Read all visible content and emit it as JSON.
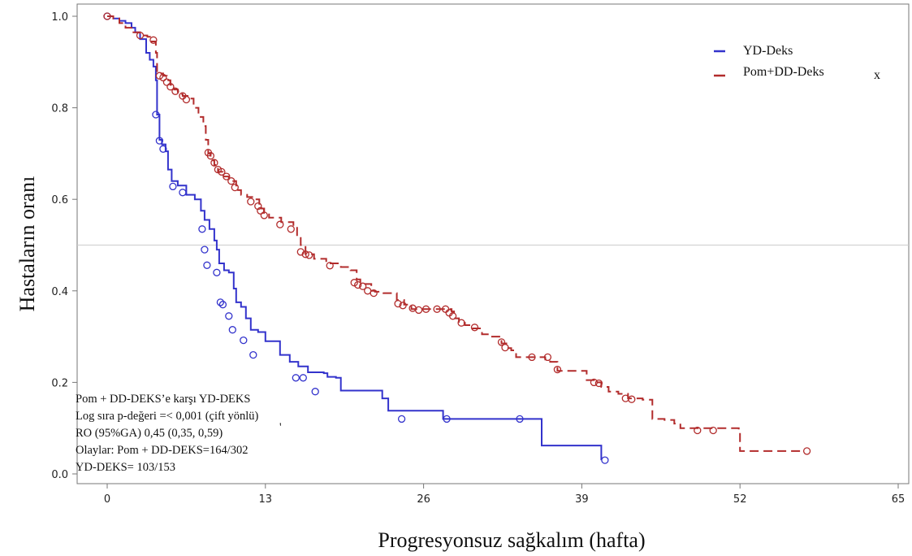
{
  "chart_data": {
    "type": "line",
    "title": "",
    "xlabel": "Progresyonsuz sağkalım (hafta)",
    "ylabel": "Hastaların oranı",
    "xlim": [
      0,
      65
    ],
    "ylim": [
      0,
      1.0
    ],
    "xticks": [
      "0",
      "13",
      "26",
      "39",
      "52",
      "65"
    ],
    "yticks": [
      "0.0",
      "0.2",
      "0.4",
      "0.6",
      "0.8",
      "1.0"
    ],
    "reference_line_y": 0.5,
    "grid": false,
    "legend": {
      "placement": "top-right",
      "entries": [
        "YD-Deks",
        "Pom+DD-Deks"
      ]
    },
    "extra_mark": "x",
    "stray_mark": "'",
    "annotation": [
      "Pom + DD-DEKS’e karşı YD-DEKS",
      "Log sıra p-değeri =< 0,001 (çift yönlü)",
      "RO (95%GA) 0,45 (0,35, 0,59)",
      "Olaylar: Pom + DD-DEKS=164/302",
      "YD-DEKS= 103/153"
    ],
    "series": [
      {
        "name": "YD-Deks",
        "color": "#3333cc",
        "dashed": false,
        "steps": [
          [
            0,
            1.0
          ],
          [
            0.5,
            0.995
          ],
          [
            1.0,
            0.99
          ],
          [
            1.5,
            0.985
          ],
          [
            2.0,
            0.975
          ],
          [
            2.3,
            0.965
          ],
          [
            2.7,
            0.95
          ],
          [
            3.2,
            0.92
          ],
          [
            3.5,
            0.905
          ],
          [
            3.8,
            0.89
          ],
          [
            4.0,
            0.86
          ],
          [
            4.1,
            0.785
          ],
          [
            4.3,
            0.73
          ],
          [
            4.5,
            0.72
          ],
          [
            4.8,
            0.705
          ],
          [
            5.0,
            0.665
          ],
          [
            5.3,
            0.64
          ],
          [
            5.8,
            0.63
          ],
          [
            6.5,
            0.61
          ],
          [
            7.2,
            0.6
          ],
          [
            7.7,
            0.575
          ],
          [
            8.0,
            0.555
          ],
          [
            8.4,
            0.535
          ],
          [
            8.8,
            0.51
          ],
          [
            9.0,
            0.49
          ],
          [
            9.2,
            0.46
          ],
          [
            9.6,
            0.445
          ],
          [
            10.0,
            0.44
          ],
          [
            10.4,
            0.405
          ],
          [
            10.6,
            0.375
          ],
          [
            11.0,
            0.365
          ],
          [
            11.4,
            0.34
          ],
          [
            11.8,
            0.315
          ],
          [
            12.4,
            0.31
          ],
          [
            13.0,
            0.29
          ],
          [
            13.7,
            0.29
          ],
          [
            14.2,
            0.26
          ],
          [
            15.0,
            0.245
          ],
          [
            15.7,
            0.235
          ],
          [
            16.5,
            0.222
          ],
          [
            17.8,
            0.22
          ],
          [
            18.1,
            0.212
          ],
          [
            18.8,
            0.21
          ],
          [
            19.2,
            0.182
          ],
          [
            22.0,
            0.182
          ],
          [
            22.6,
            0.165
          ],
          [
            23.1,
            0.138
          ],
          [
            27.6,
            0.12
          ],
          [
            35.5,
            0.12
          ],
          [
            35.7,
            0.062
          ],
          [
            40.5,
            0.062
          ],
          [
            40.6,
            0.03
          ]
        ],
        "censored": [
          [
            0,
            1.0
          ],
          [
            4.0,
            0.785
          ],
          [
            4.3,
            0.728
          ],
          [
            4.6,
            0.71
          ],
          [
            5.4,
            0.628
          ],
          [
            6.2,
            0.615
          ],
          [
            7.8,
            0.535
          ],
          [
            8.0,
            0.49
          ],
          [
            8.2,
            0.456
          ],
          [
            9.0,
            0.44
          ],
          [
            9.3,
            0.375
          ],
          [
            9.5,
            0.37
          ],
          [
            10.0,
            0.345
          ],
          [
            10.3,
            0.315
          ],
          [
            11.2,
            0.292
          ],
          [
            12.0,
            0.26
          ],
          [
            15.5,
            0.21
          ],
          [
            16.1,
            0.21
          ],
          [
            17.1,
            0.18
          ],
          [
            24.2,
            0.12
          ],
          [
            27.9,
            0.12
          ],
          [
            33.9,
            0.12
          ],
          [
            40.9,
            0.03
          ]
        ]
      },
      {
        "name": "Pom+DD-Deks",
        "color": "#b22c2c",
        "dashed": true,
        "steps": [
          [
            0,
            1.0
          ],
          [
            0.5,
            0.995
          ],
          [
            1.0,
            0.985
          ],
          [
            1.5,
            0.975
          ],
          [
            2.0,
            0.965
          ],
          [
            2.7,
            0.958
          ],
          [
            3.3,
            0.955
          ],
          [
            3.6,
            0.945
          ],
          [
            4.0,
            0.92
          ],
          [
            4.1,
            0.88
          ],
          [
            4.3,
            0.875
          ],
          [
            4.6,
            0.87
          ],
          [
            4.9,
            0.86
          ],
          [
            5.2,
            0.85
          ],
          [
            5.5,
            0.84
          ],
          [
            5.8,
            0.83
          ],
          [
            6.2,
            0.826
          ],
          [
            6.8,
            0.82
          ],
          [
            7.1,
            0.8
          ],
          [
            7.5,
            0.78
          ],
          [
            7.9,
            0.76
          ],
          [
            8.1,
            0.73
          ],
          [
            8.3,
            0.7
          ],
          [
            8.5,
            0.685
          ],
          [
            8.8,
            0.675
          ],
          [
            9.1,
            0.66
          ],
          [
            9.5,
            0.65
          ],
          [
            10.0,
            0.64
          ],
          [
            10.6,
            0.62
          ],
          [
            11.0,
            0.61
          ],
          [
            11.5,
            0.605
          ],
          [
            12.1,
            0.6
          ],
          [
            12.5,
            0.58
          ],
          [
            12.9,
            0.57
          ],
          [
            13.3,
            0.56
          ],
          [
            14.3,
            0.55
          ],
          [
            15.3,
            0.54
          ],
          [
            15.6,
            0.52
          ],
          [
            15.9,
            0.5
          ],
          [
            16.3,
            0.48
          ],
          [
            17.0,
            0.47
          ],
          [
            18.0,
            0.46
          ],
          [
            19.2,
            0.452
          ],
          [
            20.0,
            0.445
          ],
          [
            20.5,
            0.425
          ],
          [
            20.8,
            0.415
          ],
          [
            21.7,
            0.4
          ],
          [
            22.0,
            0.398
          ],
          [
            22.7,
            0.395
          ],
          [
            23.8,
            0.38
          ],
          [
            24.4,
            0.37
          ],
          [
            25.0,
            0.36
          ],
          [
            26.6,
            0.36
          ],
          [
            28.3,
            0.355
          ],
          [
            28.5,
            0.34
          ],
          [
            28.9,
            0.33
          ],
          [
            29.4,
            0.325
          ],
          [
            30.0,
            0.318
          ],
          [
            30.8,
            0.305
          ],
          [
            31.4,
            0.3
          ],
          [
            32.4,
            0.285
          ],
          [
            32.8,
            0.275
          ],
          [
            33.2,
            0.27
          ],
          [
            33.6,
            0.255
          ],
          [
            36.0,
            0.25
          ],
          [
            36.4,
            0.245
          ],
          [
            37.0,
            0.225
          ],
          [
            39.4,
            0.205
          ],
          [
            40.2,
            0.2
          ],
          [
            40.6,
            0.19
          ],
          [
            41.2,
            0.18
          ],
          [
            42.0,
            0.175
          ],
          [
            42.8,
            0.165
          ],
          [
            44.0,
            0.162
          ],
          [
            44.8,
            0.12
          ],
          [
            45.8,
            0.118
          ],
          [
            46.6,
            0.11
          ],
          [
            47.1,
            0.1
          ],
          [
            51.9,
            0.095
          ],
          [
            52.0,
            0.05
          ],
          [
            57.3,
            0.05
          ]
        ],
        "censored": [
          [
            0,
            1.0
          ],
          [
            2.7,
            0.958
          ],
          [
            3.8,
            0.948
          ],
          [
            4.3,
            0.87
          ],
          [
            4.6,
            0.866
          ],
          [
            4.9,
            0.856
          ],
          [
            5.2,
            0.846
          ],
          [
            5.6,
            0.836
          ],
          [
            6.2,
            0.826
          ],
          [
            6.5,
            0.818
          ],
          [
            8.3,
            0.702
          ],
          [
            8.5,
            0.695
          ],
          [
            8.8,
            0.68
          ],
          [
            9.1,
            0.665
          ],
          [
            9.4,
            0.66
          ],
          [
            9.8,
            0.65
          ],
          [
            10.2,
            0.64
          ],
          [
            10.5,
            0.626
          ],
          [
            11.8,
            0.595
          ],
          [
            12.4,
            0.585
          ],
          [
            12.6,
            0.575
          ],
          [
            12.9,
            0.565
          ],
          [
            14.2,
            0.545
          ],
          [
            15.1,
            0.535
          ],
          [
            15.9,
            0.485
          ],
          [
            16.3,
            0.48
          ],
          [
            16.6,
            0.478
          ],
          [
            18.3,
            0.455
          ],
          [
            20.3,
            0.418
          ],
          [
            20.6,
            0.413
          ],
          [
            21.0,
            0.41
          ],
          [
            21.4,
            0.4
          ],
          [
            21.9,
            0.395
          ],
          [
            23.9,
            0.372
          ],
          [
            24.3,
            0.368
          ],
          [
            25.1,
            0.362
          ],
          [
            25.6,
            0.358
          ],
          [
            26.2,
            0.36
          ],
          [
            27.1,
            0.36
          ],
          [
            27.8,
            0.36
          ],
          [
            28.1,
            0.352
          ],
          [
            28.4,
            0.345
          ],
          [
            29.1,
            0.33
          ],
          [
            30.2,
            0.32
          ],
          [
            32.4,
            0.288
          ],
          [
            32.7,
            0.276
          ],
          [
            34.9,
            0.255
          ],
          [
            36.2,
            0.255
          ],
          [
            37.0,
            0.228
          ],
          [
            40.0,
            0.2
          ],
          [
            40.4,
            0.198
          ],
          [
            42.6,
            0.165
          ],
          [
            43.1,
            0.163
          ],
          [
            48.5,
            0.095
          ],
          [
            49.8,
            0.095
          ],
          [
            57.5,
            0.05
          ]
        ]
      }
    ]
  }
}
